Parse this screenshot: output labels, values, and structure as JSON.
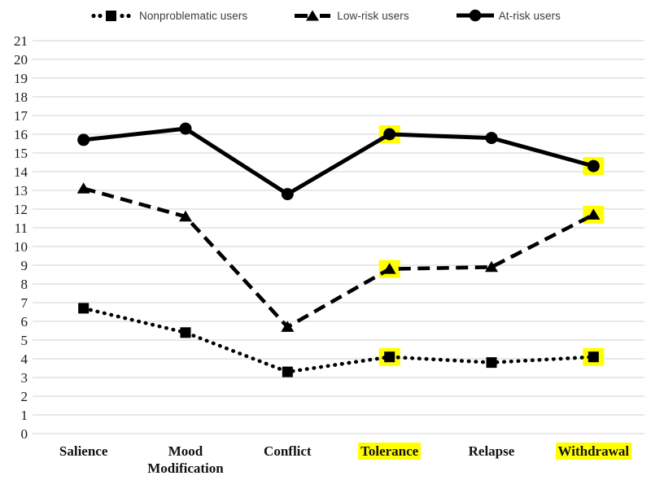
{
  "chart_data": {
    "type": "line",
    "categories": [
      "Salience",
      "Mood Modification",
      "Conflict",
      "Tolerance",
      "Relapse",
      "Withdrawal"
    ],
    "series": [
      {
        "name": "Nonproblematic users",
        "marker": "square",
        "line_style": "dotted",
        "values": [
          6.7,
          5.4,
          3.3,
          4.1,
          3.8,
          4.1
        ]
      },
      {
        "name": "Low-risk users",
        "marker": "triangle",
        "line_style": "dashed",
        "values": [
          13.1,
          11.6,
          5.7,
          8.8,
          8.9,
          11.7
        ]
      },
      {
        "name": "At-risk users",
        "marker": "circle",
        "line_style": "solid",
        "values": [
          15.7,
          16.3,
          12.8,
          16.0,
          15.8,
          14.3
        ]
      }
    ],
    "title": "",
    "xlabel": "",
    "ylabel": "",
    "ylim": [
      0,
      21
    ],
    "ytick_step": 1,
    "grid": true,
    "legend_position": "top",
    "highlighted_categories": [
      "Tolerance",
      "Withdrawal"
    ],
    "colors": {
      "series": "#000000",
      "gridline": "#d9d9d9",
      "highlight": "#ffff00",
      "axis_text": "#1a1a1a"
    }
  }
}
